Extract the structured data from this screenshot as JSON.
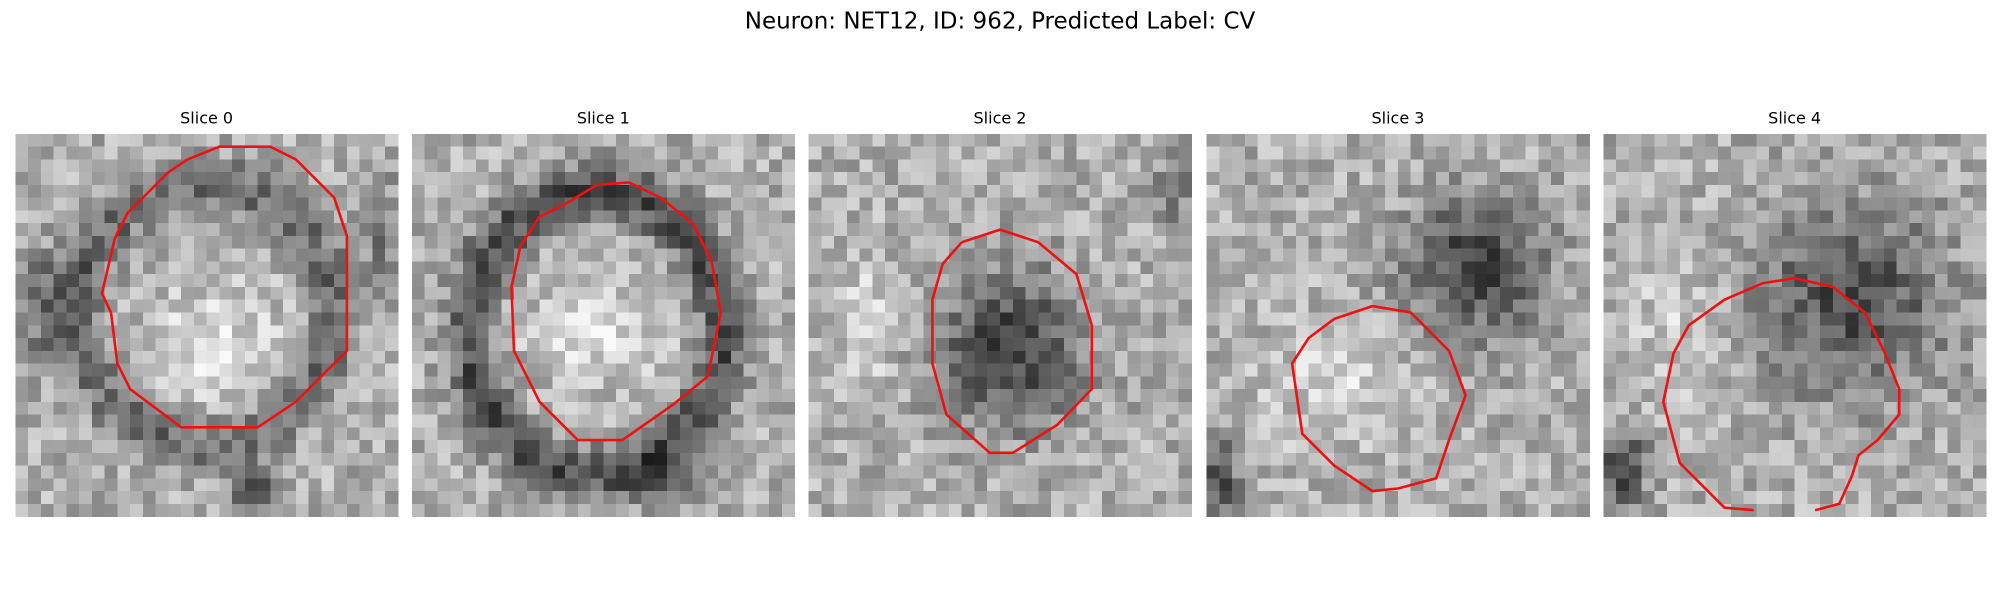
{
  "title": "Neuron: NET12, ID: 962, Predicted Label: CV",
  "panels": [
    {
      "title": "Slice 0"
    },
    {
      "title": "Slice 1"
    },
    {
      "title": "Slice 2"
    },
    {
      "title": "Slice 3"
    },
    {
      "title": "Slice 4"
    }
  ]
}
